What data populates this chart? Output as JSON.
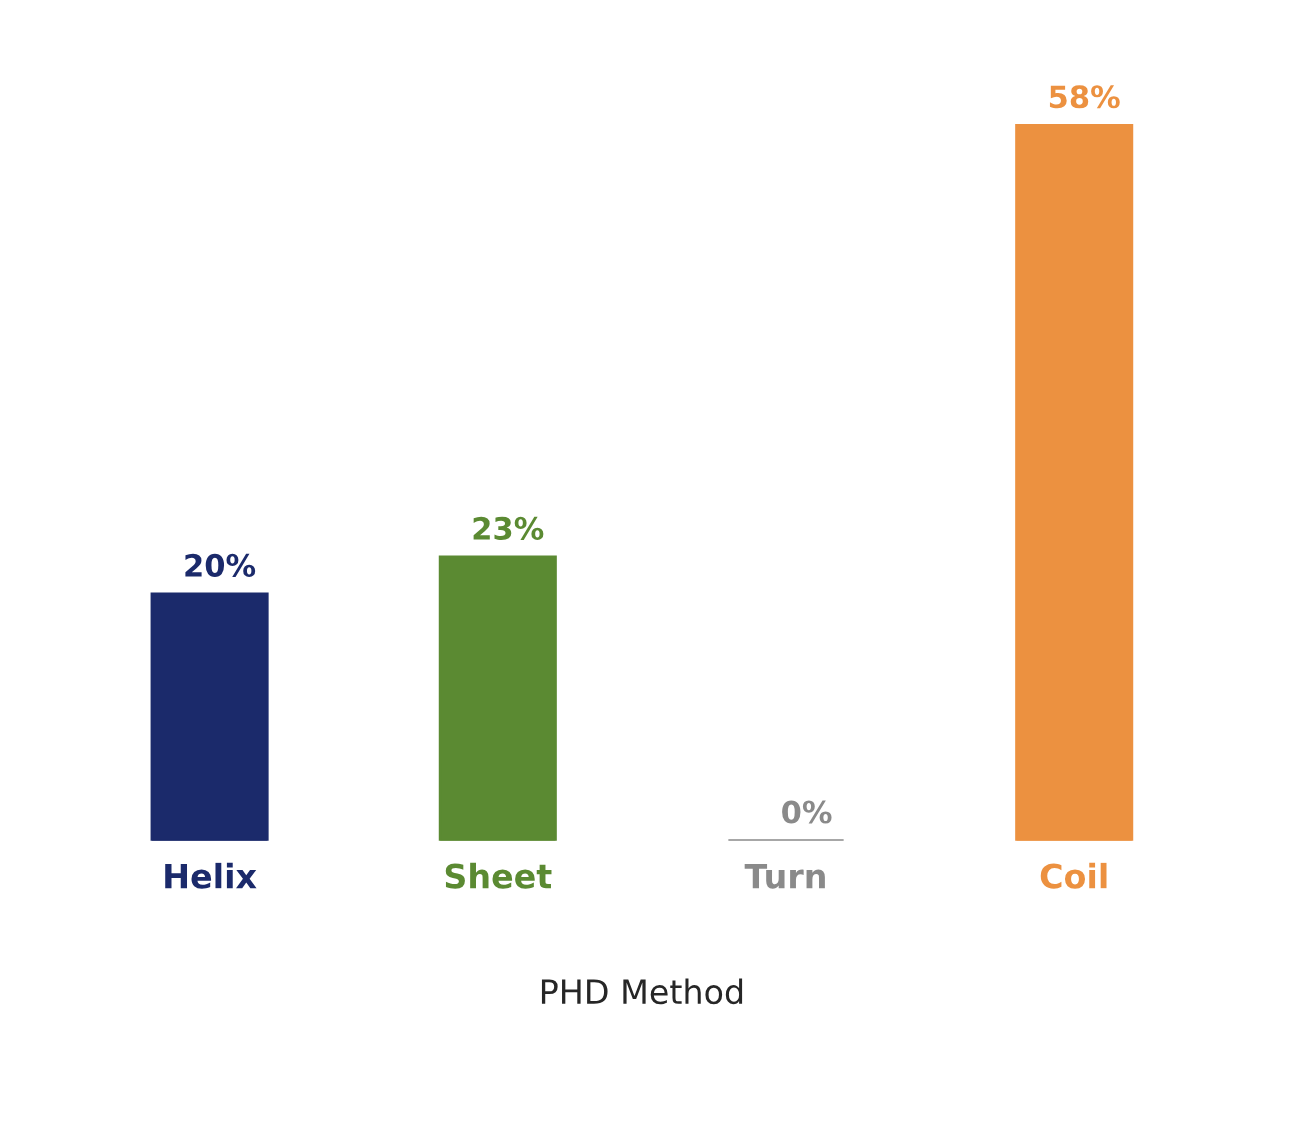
{
  "chart_data": {
    "type": "bar",
    "xlabel": "PHD Method",
    "categories": [
      "Helix",
      "Sheet",
      "Turn",
      "Coil"
    ],
    "values": [
      20,
      23,
      0,
      58
    ],
    "colors": [
      "#1b2a6b",
      "#5b8a32",
      "#8a8a8a",
      "#ec9140"
    ],
    "value_labels": [
      "20%",
      "23%",
      "0%",
      "58%"
    ],
    "tick_labels": "x",
    "grid": false
  }
}
